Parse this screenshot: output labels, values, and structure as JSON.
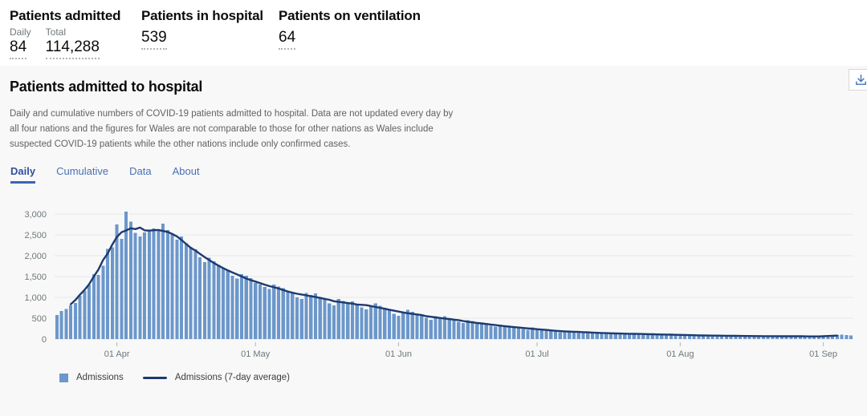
{
  "stats": {
    "admitted": {
      "title": "Patients admitted",
      "items": [
        {
          "label": "Daily",
          "value": "84"
        },
        {
          "label": "Total",
          "value": "114,288"
        }
      ]
    },
    "in_hospital": {
      "title": "Patients in hospital",
      "value": "539"
    },
    "ventilation": {
      "title": "Patients on ventilation",
      "value": "64"
    }
  },
  "section": {
    "title": "Patients admitted to hospital",
    "description": "Daily and cumulative numbers of COVID-19 patients admitted to hospital. Data are not updated every day by all four nations and the figures for Wales are not comparable to those for other nations as Wales include suspected COVID-19 patients while the other nations include only confirmed cases.",
    "tabs": [
      {
        "label": "Daily",
        "active": true
      },
      {
        "label": "Cumulative",
        "active": false
      },
      {
        "label": "Data",
        "active": false
      },
      {
        "label": "About",
        "active": false
      }
    ],
    "download_icon": "download-icon"
  },
  "colors": {
    "bar": "#6b97cb",
    "line": "#1d3a70",
    "grid": "#e9e9e9",
    "axis_text": "#6f777b",
    "tick": "#b1b4b6",
    "tab_active": "#30519d",
    "tab_inactive": "#4a70b4",
    "download_icon": "#3f72b8",
    "panel_bg": "#f8f8f8"
  },
  "chart_data": {
    "type": "bar",
    "title": "Patients admitted to hospital",
    "start_date": "2020-03-19",
    "ylim": [
      0,
      3000
    ],
    "grid": "horizontal",
    "legend_position": "bottom-left",
    "y_ticks": [
      {
        "value": 0,
        "label": "0"
      },
      {
        "value": 500,
        "label": "500"
      },
      {
        "value": 1000,
        "label": "1,000"
      },
      {
        "value": 1500,
        "label": "1,500"
      },
      {
        "value": 2000,
        "label": "2,000"
      },
      {
        "value": 2500,
        "label": "2,500"
      },
      {
        "value": 3000,
        "label": "3,000"
      }
    ],
    "x_ticks": [
      {
        "index": 13,
        "label": "01 Apr"
      },
      {
        "index": 43,
        "label": "01 May"
      },
      {
        "index": 74,
        "label": "01 Jun"
      },
      {
        "index": 104,
        "label": "01 Jul"
      },
      {
        "index": 135,
        "label": "01 Aug"
      },
      {
        "index": 166,
        "label": "01 Sep"
      }
    ],
    "series": [
      {
        "name": "Admissions",
        "type": "bar",
        "color": "#6b97cb",
        "values": [
          580,
          670,
          720,
          810,
          870,
          1040,
          1150,
          1300,
          1560,
          1540,
          1760,
          2160,
          2200,
          2750,
          2400,
          3060,
          2820,
          2550,
          2460,
          2560,
          2620,
          2650,
          2600,
          2770,
          2620,
          2500,
          2380,
          2460,
          2300,
          2210,
          2150,
          1960,
          1850,
          1950,
          1870,
          1780,
          1700,
          1660,
          1520,
          1450,
          1560,
          1520,
          1460,
          1350,
          1310,
          1250,
          1200,
          1310,
          1260,
          1220,
          1150,
          1100,
          1000,
          960,
          1110,
          1060,
          1100,
          1010,
          950,
          860,
          810,
          960,
          910,
          860,
          900,
          850,
          760,
          710,
          810,
          860,
          800,
          750,
          700,
          610,
          560,
          650,
          700,
          650,
          600,
          560,
          510,
          460,
          550,
          510,
          550,
          500,
          460,
          410,
          380,
          450,
          430,
          400,
          380,
          350,
          320,
          300,
          350,
          330,
          310,
          290,
          270,
          240,
          220,
          280,
          250,
          240,
          220,
          200,
          180,
          160,
          200,
          190,
          185,
          175,
          165,
          145,
          135,
          165,
          155,
          150,
          140,
          130,
          120,
          110,
          140,
          135,
          130,
          120,
          115,
          105,
          100,
          120,
          115,
          110,
          105,
          95,
          90,
          85,
          100,
          95,
          90,
          85,
          80,
          75,
          70,
          90,
          85,
          80,
          75,
          70,
          65,
          60,
          80,
          75,
          70,
          72,
          68,
          62,
          58,
          75,
          72,
          70,
          68,
          64,
          60,
          55,
          60,
          70,
          64,
          95,
          105,
          100,
          90
        ]
      },
      {
        "name": "Admissions (7-day average)",
        "type": "line",
        "color": "#1d3a70",
        "derived_from": "Admissions",
        "window": 7
      }
    ]
  }
}
